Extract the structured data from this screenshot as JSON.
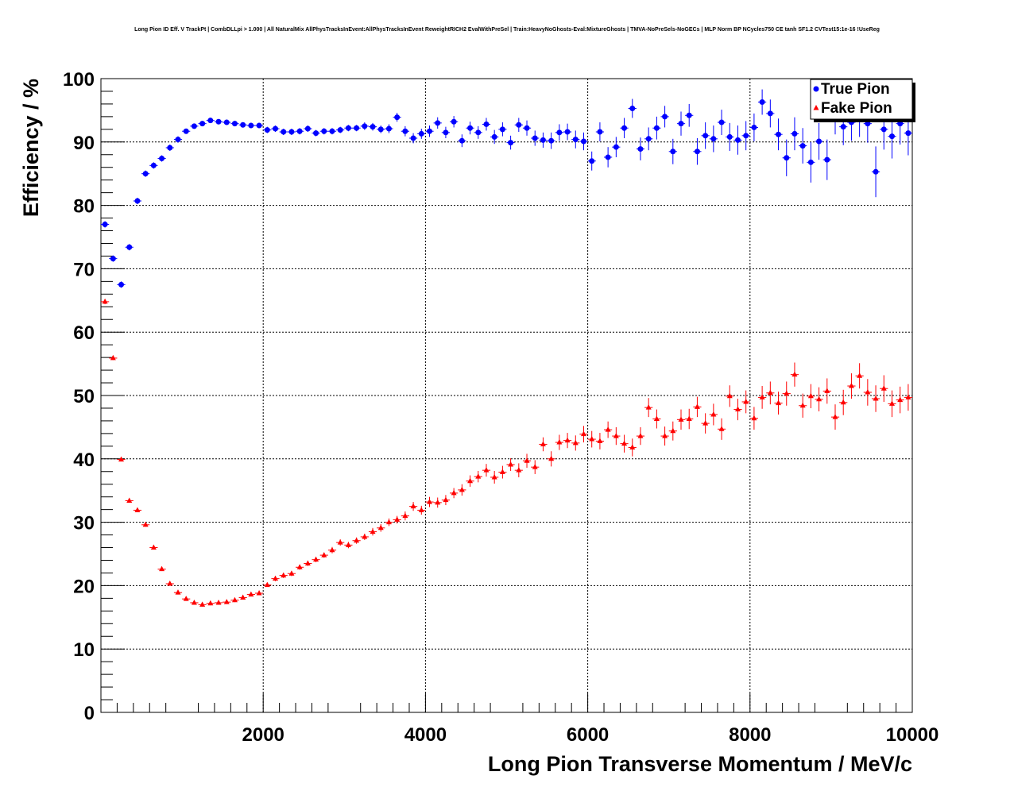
{
  "title": "Long Pion ID Eff. V TrackPt | CombDLLpi > 1.000 | All NaturalMix AllPhysTracksInEvent:AllPhysTracksInEvent ReweightRICH2 EvalWithPreSel | Train:HeavyNoGhosts-Eval:MixtureGhosts | TMVA-NoPreSels-NoGECs | MLP Norm BP NCycles750 CE tanh SF1.2 CVTest15:1e-16 !UseReg",
  "chart_data": {
    "type": "scatter",
    "title": "Long Pion ID Eff. V TrackPt | CombDLLpi > 1.000 | All NaturalMix AllPhysTracksInEvent:AllPhysTracksInEvent ReweightRICH2 EvalWithPreSel | Train:HeavyNoGhosts-Eval:MixtureGhosts | TMVA-NoPreSels-NoGECs | MLP Norm BP NCycles750 CE tanh SF1.2 CVTest15:1e-16 !UseReg",
    "xlabel": "Long Pion Transverse Momentum / MeV/c",
    "ylabel": "Efficiency / %",
    "xlim": [
      0,
      10000
    ],
    "ylim": [
      0,
      100
    ],
    "xticks": [
      2000,
      4000,
      6000,
      8000,
      10000
    ],
    "yticks": [
      0,
      10,
      20,
      30,
      40,
      50,
      60,
      70,
      80,
      90,
      100
    ],
    "grid": true,
    "legend_position": "top-right",
    "bin_width": 100,
    "x_start": 50,
    "series": [
      {
        "name": "True Pion",
        "color": "#0000ff",
        "marker": "circle",
        "values": [
          77.0,
          71.6,
          67.5,
          73.4,
          80.7,
          85.0,
          86.3,
          87.4,
          89.1,
          90.4,
          91.7,
          92.5,
          92.9,
          93.4,
          93.2,
          93.1,
          92.9,
          92.7,
          92.6,
          92.6,
          91.9,
          92.1,
          91.6,
          91.6,
          91.7,
          92.1,
          91.4,
          91.7,
          91.7,
          91.9,
          92.2,
          92.2,
          92.5,
          92.4,
          92.0,
          92.1,
          93.9,
          91.7,
          90.6,
          91.3,
          91.7,
          93.0,
          91.5,
          93.2,
          90.2,
          92.2,
          91.5,
          92.8,
          90.8,
          92.0,
          89.9,
          92.7,
          92.2,
          90.6,
          90.3,
          90.2,
          91.5,
          91.6,
          90.4,
          90.1,
          87.0,
          91.6,
          87.6,
          89.2,
          92.2,
          95.3,
          88.9,
          90.5,
          92.2,
          94.0,
          88.5,
          92.9,
          94.2,
          88.5,
          91.0,
          90.5,
          93.1,
          90.8,
          90.3,
          91.0,
          92.3,
          96.3,
          94.5,
          91.2,
          87.5,
          91.3,
          89.4,
          86.8,
          90.1,
          87.2,
          93.7,
          92.4,
          93.1,
          93.6,
          92.9,
          85.3,
          92.0,
          90.9,
          92.9,
          91.4
        ],
        "errors": [
          0.5,
          0.5,
          0.5,
          0.5,
          0.5,
          0.5,
          0.5,
          0.5,
          0.5,
          0.5,
          0.4,
          0.4,
          0.4,
          0.4,
          0.4,
          0.4,
          0.4,
          0.4,
          0.4,
          0.4,
          0.5,
          0.5,
          0.5,
          0.5,
          0.5,
          0.5,
          0.5,
          0.5,
          0.5,
          0.5,
          0.5,
          0.5,
          0.6,
          0.6,
          0.6,
          0.7,
          0.7,
          0.8,
          0.8,
          0.8,
          0.9,
          0.9,
          0.9,
          0.9,
          1.0,
          1.0,
          1.0,
          1.0,
          1.1,
          1.1,
          1.1,
          1.1,
          1.2,
          1.2,
          1.2,
          1.3,
          1.3,
          1.3,
          1.4,
          1.4,
          1.5,
          1.5,
          1.6,
          1.6,
          1.6,
          1.5,
          1.8,
          1.8,
          1.8,
          1.7,
          2.0,
          1.9,
          1.8,
          2.1,
          2.1,
          2.1,
          2.0,
          2.2,
          2.3,
          2.3,
          2.2,
          2.0,
          2.2,
          2.5,
          2.9,
          2.6,
          2.8,
          3.2,
          2.9,
          3.2,
          2.5,
          2.9,
          2.9,
          2.8,
          3.0,
          4.0,
          3.2,
          3.5,
          3.3,
          3.5
        ]
      },
      {
        "name": "Fake Pion",
        "color": "#ff0000",
        "marker": "triangle",
        "values": [
          64.8,
          55.9,
          39.9,
          33.4,
          31.9,
          29.6,
          26.0,
          22.6,
          20.3,
          18.9,
          17.9,
          17.3,
          17.0,
          17.2,
          17.3,
          17.4,
          17.7,
          18.1,
          18.6,
          18.8,
          20.1,
          21.1,
          21.6,
          21.9,
          22.9,
          23.5,
          24.1,
          24.8,
          25.6,
          26.8,
          26.4,
          27.1,
          27.7,
          28.5,
          29.1,
          30.0,
          30.4,
          31.0,
          32.5,
          31.9,
          33.2,
          33.1,
          33.5,
          34.6,
          35.1,
          36.5,
          37.2,
          38.2,
          37.1,
          37.9,
          39.1,
          38.2,
          39.7,
          38.7,
          42.3,
          40.0,
          42.6,
          42.9,
          42.5,
          43.9,
          43.1,
          42.8,
          44.6,
          43.6,
          42.4,
          41.8,
          43.6,
          48.1,
          46.3,
          43.6,
          44.4,
          46.2,
          46.3,
          48.2,
          45.6,
          47.0,
          44.7,
          49.9,
          47.8,
          49.0,
          46.4,
          49.7,
          50.4,
          48.8,
          50.3,
          53.3,
          48.4,
          49.9,
          49.4,
          50.7,
          46.6,
          48.9,
          51.5,
          53.1,
          50.5,
          49.5,
          51.1,
          48.7,
          49.3,
          49.7
        ],
        "errors": [
          0.4,
          0.3,
          0.3,
          0.3,
          0.3,
          0.3,
          0.3,
          0.3,
          0.3,
          0.3,
          0.3,
          0.3,
          0.3,
          0.3,
          0.3,
          0.3,
          0.3,
          0.3,
          0.3,
          0.3,
          0.3,
          0.4,
          0.4,
          0.4,
          0.4,
          0.4,
          0.4,
          0.4,
          0.5,
          0.5,
          0.5,
          0.5,
          0.5,
          0.6,
          0.6,
          0.6,
          0.6,
          0.7,
          0.7,
          0.7,
          0.8,
          0.8,
          0.8,
          0.8,
          0.9,
          0.9,
          0.9,
          1.0,
          1.0,
          1.0,
          1.0,
          1.1,
          1.1,
          1.1,
          1.1,
          1.2,
          1.2,
          1.2,
          1.2,
          1.3,
          1.3,
          1.3,
          1.3,
          1.4,
          1.4,
          1.4,
          1.4,
          1.5,
          1.5,
          1.5,
          1.5,
          1.6,
          1.6,
          1.6,
          1.6,
          1.7,
          1.7,
          1.7,
          1.7,
          1.8,
          1.8,
          1.8,
          1.8,
          1.8,
          1.9,
          1.9,
          1.9,
          1.9,
          1.9,
          2.0,
          2.0,
          2.0,
          2.0,
          2.0,
          2.1,
          2.1,
          2.1,
          2.1,
          2.1,
          2.1
        ]
      }
    ]
  }
}
